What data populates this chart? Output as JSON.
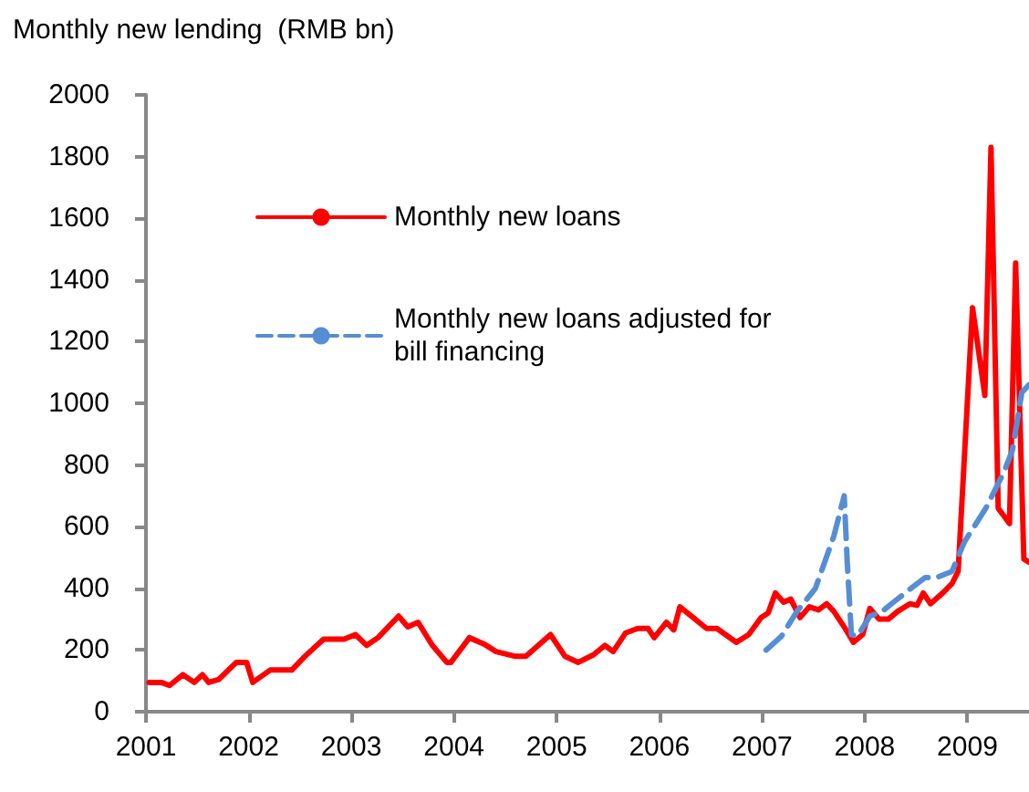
{
  "chart_data": {
    "type": "line",
    "title": "Monthly new lending  (RMB bn)",
    "xlim": [
      2001,
      2009.6
    ],
    "xticks": [
      2001,
      2002,
      2003,
      2004,
      2005,
      2006,
      2007,
      2008,
      2009
    ],
    "ylim": [
      0,
      2000
    ],
    "yticks": [
      0,
      200,
      400,
      600,
      800,
      1000,
      1200,
      1400,
      1600,
      1800,
      2000
    ],
    "grid": false,
    "legend": "top left",
    "marker": "none",
    "series": [
      {
        "name": "Monthly new loans",
        "color": "#ff0000",
        "line_style": "solid",
        "x": [
          2001.03,
          2001.15,
          2001.23,
          2001.36,
          2001.47,
          2001.55,
          2001.61,
          2001.71,
          2001.88,
          2001.98,
          2002.04,
          2002.21,
          2002.42,
          2002.55,
          2002.73,
          2002.93,
          2003.04,
          2003.15,
          2003.26,
          2003.46,
          2003.55,
          2003.65,
          2003.79,
          2003.93,
          2003.97,
          2004.15,
          2004.29,
          2004.41,
          2004.59,
          2004.7,
          2004.94,
          2005.08,
          2005.21,
          2005.36,
          2005.47,
          2005.55,
          2005.67,
          2005.79,
          2005.89,
          2005.95,
          2006.07,
          2006.14,
          2006.2,
          2006.33,
          2006.46,
          2006.56,
          2006.75,
          2006.87,
          2006.99,
          2007.06,
          2007.13,
          2007.21,
          2007.28,
          2007.37,
          2007.46,
          2007.55,
          2007.63,
          2007.7,
          2007.8,
          2007.89,
          2007.98,
          2008.05,
          2008.14,
          2008.23,
          2008.32,
          2008.44,
          2008.51,
          2008.57,
          2008.64,
          2008.76,
          2008.85,
          2008.91,
          2009.05,
          2009.17,
          2009.23,
          2009.3,
          2009.41,
          2009.47,
          2009.55,
          2009.6
        ],
        "values": [
          95,
          95,
          85,
          120,
          95,
          120,
          95,
          105,
          160,
          160,
          95,
          135,
          135,
          180,
          235,
          235,
          250,
          215,
          240,
          310,
          275,
          290,
          215,
          160,
          160,
          240,
          220,
          195,
          180,
          180,
          250,
          180,
          160,
          185,
          215,
          195,
          255,
          270,
          270,
          240,
          290,
          265,
          340,
          305,
          270,
          270,
          225,
          250,
          305,
          320,
          385,
          355,
          365,
          305,
          340,
          330,
          350,
          325,
          275,
          225,
          250,
          335,
          300,
          300,
          325,
          350,
          345,
          385,
          350,
          385,
          415,
          455,
          1310,
          1025,
          1830,
          660,
          610,
          1455,
          495,
          485
        ]
      },
      {
        "name": "Monthly new loans adjusted for bill financing",
        "color": "#558ed5",
        "line_style": "dashed",
        "x": [
          2007.04,
          2007.19,
          2007.34,
          2007.52,
          2007.7,
          2007.8,
          2007.83,
          2007.87,
          2007.93,
          2008.05,
          2008.17,
          2008.28,
          2008.47,
          2008.59,
          2008.7,
          2008.85,
          2008.97,
          2009.18,
          2009.36,
          2009.44,
          2009.53,
          2009.6
        ],
        "values": [
          200,
          245,
          325,
          400,
          570,
          700,
          485,
          250,
          245,
          310,
          325,
          355,
          405,
          435,
          435,
          455,
          550,
          660,
          780,
          850,
          1035,
          1060
        ]
      }
    ]
  }
}
